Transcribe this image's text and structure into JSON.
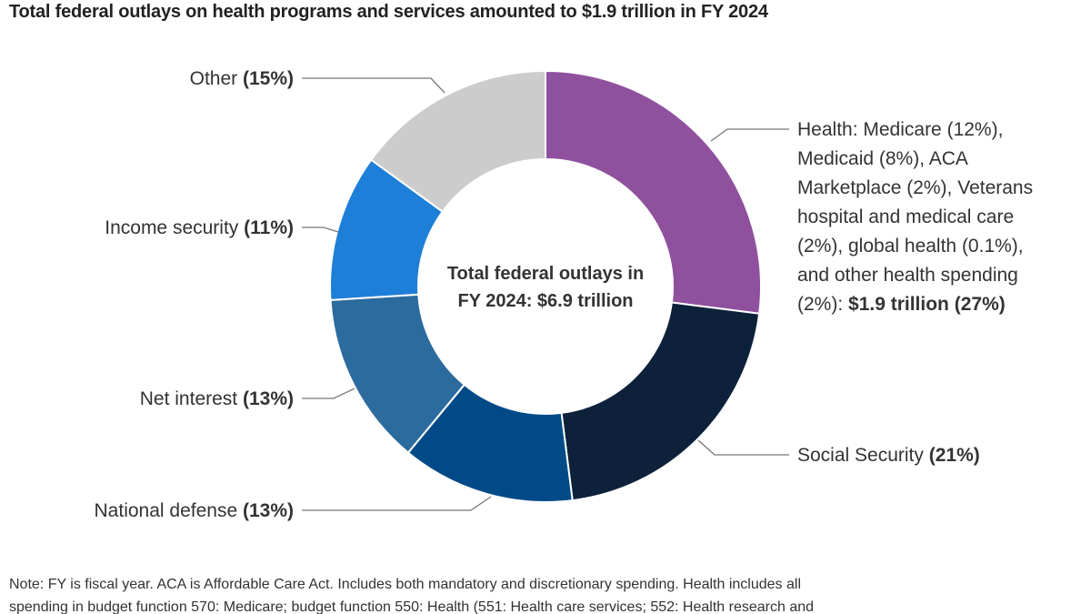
{
  "title": "Total federal outlays on health programs and services amounted to $1.9 trillion in FY 2024",
  "chart_data": {
    "type": "pie",
    "subtype": "donut",
    "center_label": [
      "Total federal outlays in",
      "FY 2024: $6.9 trillion"
    ],
    "legend": "none",
    "slices": [
      {
        "key": "health",
        "value": 27,
        "color": "#8f519e",
        "label_lines": [
          [
            "Health: Medicare (12%),",
            ""
          ],
          [
            "Medicaid (8%), ACA",
            ""
          ],
          [
            "Marketplace (2%), Veterans",
            ""
          ],
          [
            "hospital and medical care",
            ""
          ],
          [
            "(2%), global health (0.1%),",
            ""
          ],
          [
            "and other health spending",
            ""
          ],
          [
            "(2%): ",
            "$1.9 trillion (27%)"
          ]
        ]
      },
      {
        "key": "social-security",
        "value": 21,
        "color": "#0d213b",
        "label_lines": [
          [
            "Social Security ",
            "(21%)"
          ]
        ]
      },
      {
        "key": "national-defense",
        "value": 13,
        "color": "#004b87",
        "label_lines": [
          [
            "National defense ",
            "(13%)"
          ]
        ]
      },
      {
        "key": "net-interest",
        "value": 13,
        "color": "#2c6b9e",
        "label_lines": [
          [
            "Net interest ",
            "(13%)"
          ]
        ]
      },
      {
        "key": "income-security",
        "value": 11,
        "color": "#1d7fd7",
        "label_lines": [
          [
            "Income security ",
            "(11%)"
          ]
        ]
      },
      {
        "key": "other",
        "value": 15,
        "color": "#cccccc",
        "label_lines": [
          [
            "Other ",
            "(15%)"
          ]
        ]
      }
    ]
  },
  "note_lines": [
    "Note: FY is fiscal year. ACA is Affordable Care Act. Includes both mandatory and discretionary spending. Health includes all",
    "spending in budget function 570: Medicare; budget function 550: Health (551: Health care services; 552: Health research and"
  ]
}
